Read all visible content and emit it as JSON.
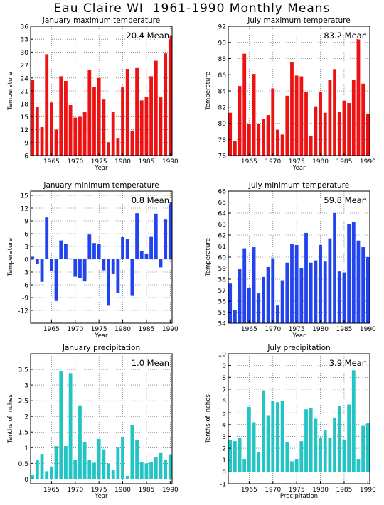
{
  "page_title": "Eau Claire WI  1961-1990 Monthly Means",
  "chart_data": [
    {
      "type": "bar",
      "title": "January maximum temperature",
      "annotation": "20.4 Mean",
      "xlabel": "Year",
      "ylabel": "Temperature",
      "color": "#ee1111",
      "ylim": [
        6,
        36
      ],
      "yticks": [
        6,
        9,
        12,
        15,
        18,
        21,
        24,
        27,
        30,
        33,
        36
      ],
      "ytick_labels": [
        "6",
        "9",
        "12",
        "15",
        "18",
        "21",
        "24",
        "27",
        "30",
        "33",
        "36"
      ],
      "xticks": [
        1965,
        1970,
        1975,
        1980,
        1985,
        1990
      ],
      "xtick_labels": [
        "1965",
        "1970",
        "1975",
        "1980",
        "1985",
        "1990"
      ],
      "categories": [
        1961,
        1962,
        1963,
        1964,
        1965,
        1966,
        1967,
        1968,
        1969,
        1970,
        1971,
        1972,
        1973,
        1974,
        1975,
        1976,
        1977,
        1978,
        1979,
        1980,
        1981,
        1982,
        1983,
        1984,
        1985,
        1986,
        1987,
        1988,
        1989,
        1990
      ],
      "values": [
        23.5,
        17.2,
        12.6,
        29.5,
        18.3,
        12.0,
        24.4,
        23.3,
        17.7,
        14.8,
        15.0,
        16.2,
        25.8,
        21.9,
        24.0,
        19.0,
        9.1,
        16.1,
        10.1,
        21.8,
        26.1,
        11.8,
        26.3,
        18.8,
        19.6,
        24.4,
        28.0,
        19.5,
        29.7,
        33.8
      ]
    },
    {
      "type": "bar",
      "title": "July maximum temperature",
      "annotation": "83.2 Mean",
      "xlabel": "Year",
      "ylabel": "Temperature",
      "color": "#ee1111",
      "ylim": [
        76,
        92
      ],
      "yticks": [
        76,
        78,
        80,
        82,
        84,
        86,
        88,
        90,
        92
      ],
      "ytick_labels": [
        "76",
        "78",
        "80",
        "82",
        "84",
        "86",
        "88",
        "90",
        "92"
      ],
      "xticks": [
        1965,
        1970,
        1975,
        1980,
        1985,
        1990
      ],
      "xtick_labels": [
        "1965",
        "1970",
        "1975",
        "1980",
        "1985",
        "1990"
      ],
      "categories": [
        1961,
        1962,
        1963,
        1964,
        1965,
        1966,
        1967,
        1968,
        1969,
        1970,
        1971,
        1972,
        1973,
        1974,
        1975,
        1976,
        1977,
        1978,
        1979,
        1980,
        1981,
        1982,
        1983,
        1984,
        1985,
        1986,
        1987,
        1988,
        1989,
        1990
      ],
      "values": [
        81.3,
        77.8,
        84.6,
        88.6,
        79.9,
        86.1,
        79.9,
        80.5,
        81.0,
        84.3,
        79.2,
        78.6,
        83.4,
        87.6,
        85.9,
        85.8,
        83.9,
        78.4,
        82.1,
        83.9,
        81.3,
        85.4,
        86.7,
        81.4,
        82.8,
        82.5,
        85.4,
        90.9,
        84.9,
        81.1
      ]
    },
    {
      "type": "bar",
      "title": "January minimum temperature",
      "annotation": "0.8 Mean",
      "xlabel": "Year",
      "ylabel": "Temperature",
      "color": "#2244ee",
      "ylim": [
        -15,
        16
      ],
      "yticks": [
        -12,
        -9,
        -6,
        -3,
        0,
        3,
        6,
        9,
        12,
        15
      ],
      "ytick_labels": [
        "-12",
        "-9",
        "-6",
        "-3",
        "0",
        "3",
        "6",
        "9",
        "12",
        "15"
      ],
      "xticks": [
        1965,
        1970,
        1975,
        1980,
        1985,
        1990
      ],
      "xtick_labels": [
        "1965",
        "1970",
        "1975",
        "1980",
        "1985",
        "1990"
      ],
      "categories": [
        1961,
        1962,
        1963,
        1964,
        1965,
        1966,
        1967,
        1968,
        1969,
        1970,
        1971,
        1972,
        1973,
        1974,
        1975,
        1976,
        1977,
        1978,
        1979,
        1980,
        1981,
        1982,
        1983,
        1984,
        1985,
        1986,
        1987,
        1988,
        1989,
        1990
      ],
      "values": [
        0.6,
        -1.0,
        -5.3,
        9.8,
        -2.8,
        -9.8,
        4.4,
        3.5,
        0.2,
        -4.1,
        -4.4,
        -5.2,
        5.8,
        3.8,
        3.5,
        -2.6,
        -10.9,
        -3.5,
        -7.9,
        5.2,
        4.7,
        -8.6,
        10.8,
        1.9,
        1.3,
        5.4,
        10.7,
        -1.9,
        9.3,
        13.5
      ]
    },
    {
      "type": "bar",
      "title": "July minimum temperature",
      "annotation": "59.8 Mean",
      "xlabel": "Year",
      "ylabel": "Temperature",
      "color": "#2244ee",
      "ylim": [
        54,
        66
      ],
      "yticks": [
        54,
        55,
        56,
        57,
        58,
        59,
        60,
        61,
        62,
        63,
        64,
        65,
        66
      ],
      "ytick_labels": [
        "54",
        "55",
        "56",
        "57",
        "58",
        "59",
        "60",
        "61",
        "62",
        "63",
        "64",
        "65",
        "66"
      ],
      "xticks": [
        1965,
        1970,
        1975,
        1980,
        1985,
        1990
      ],
      "xtick_labels": [
        "1965",
        "1970",
        "1975",
        "1980",
        "1985",
        "1990"
      ],
      "categories": [
        1961,
        1962,
        1963,
        1964,
        1965,
        1966,
        1967,
        1968,
        1969,
        1970,
        1971,
        1972,
        1973,
        1974,
        1975,
        1976,
        1977,
        1978,
        1979,
        1980,
        1981,
        1982,
        1983,
        1984,
        1985,
        1986,
        1987,
        1988,
        1989,
        1990
      ],
      "values": [
        57.6,
        55.2,
        58.9,
        60.8,
        57.2,
        60.9,
        56.7,
        58.2,
        59.1,
        59.9,
        55.6,
        57.9,
        59.5,
        61.2,
        61.1,
        59.0,
        62.2,
        59.5,
        59.7,
        61.1,
        59.6,
        61.7,
        64.0,
        58.7,
        58.6,
        63.0,
        63.2,
        61.5,
        60.9,
        60.0
      ]
    },
    {
      "type": "bar",
      "title": "January precipitation",
      "annotation": "1.0 Mean",
      "xlabel": "Year",
      "ylabel": "Tenths of Inches",
      "color": "#22c4c4",
      "ylim": [
        -0.15,
        4.0
      ],
      "yticks": [
        0,
        0.5,
        1,
        1.5,
        2,
        2.5,
        3,
        3.5
      ],
      "ytick_labels": [
        "0",
        "0.5",
        "1",
        "1.5",
        "2",
        "2.5",
        "3",
        "3.5"
      ],
      "xticks": [
        1965,
        1970,
        1975,
        1980,
        1985,
        1990
      ],
      "xtick_labels": [
        "1965",
        "1970",
        "1975",
        "1980",
        "1985",
        "1990"
      ],
      "categories": [
        1961,
        1962,
        1963,
        1964,
        1965,
        1966,
        1967,
        1968,
        1969,
        1970,
        1971,
        1972,
        1973,
        1974,
        1975,
        1976,
        1977,
        1978,
        1979,
        1980,
        1981,
        1982,
        1983,
        1984,
        1985,
        1986,
        1987,
        1988,
        1989,
        1990
      ],
      "values": [
        0.12,
        0.6,
        0.8,
        0.25,
        0.4,
        1.05,
        3.45,
        1.05,
        3.38,
        0.6,
        2.35,
        1.18,
        0.6,
        0.52,
        1.28,
        0.95,
        0.5,
        0.28,
        1.0,
        1.35,
        0.1,
        1.73,
        1.25,
        0.55,
        0.5,
        0.53,
        0.7,
        0.83,
        0.6,
        0.78
      ]
    },
    {
      "type": "bar",
      "title": "July precipitation",
      "annotation": "3.9 Mean",
      "xlabel": "Precipitation",
      "ylabel": "Tenths of Inches",
      "color": "#22c4c4",
      "ylim": [
        -1,
        10
      ],
      "yticks": [
        -1,
        0,
        1,
        2,
        3,
        4,
        5,
        6,
        7,
        8,
        9,
        10
      ],
      "ytick_labels": [
        "-1",
        "0",
        "1",
        "2",
        "3",
        "4",
        "5",
        "6",
        "7",
        "8",
        "9",
        "10"
      ],
      "xticks": [
        1965,
        1970,
        1975,
        1980,
        1985,
        1990
      ],
      "xtick_labels": [
        "1965",
        "1970",
        "1975",
        "1980",
        "1985",
        "1990"
      ],
      "categories": [
        1961,
        1962,
        1963,
        1964,
        1965,
        1966,
        1967,
        1968,
        1969,
        1970,
        1971,
        1972,
        1973,
        1974,
        1975,
        1976,
        1977,
        1978,
        1979,
        1980,
        1981,
        1982,
        1983,
        1984,
        1985,
        1986,
        1987,
        1988,
        1989,
        1990
      ],
      "values": [
        2.7,
        2.6,
        2.9,
        1.1,
        5.5,
        4.2,
        1.7,
        6.9,
        4.8,
        6.0,
        5.9,
        6.0,
        2.5,
        0.9,
        1.1,
        2.6,
        5.3,
        5.4,
        4.5,
        2.9,
        3.5,
        2.9,
        4.6,
        5.6,
        2.7,
        5.7,
        8.6,
        1.1,
        3.9,
        4.1
      ]
    }
  ]
}
